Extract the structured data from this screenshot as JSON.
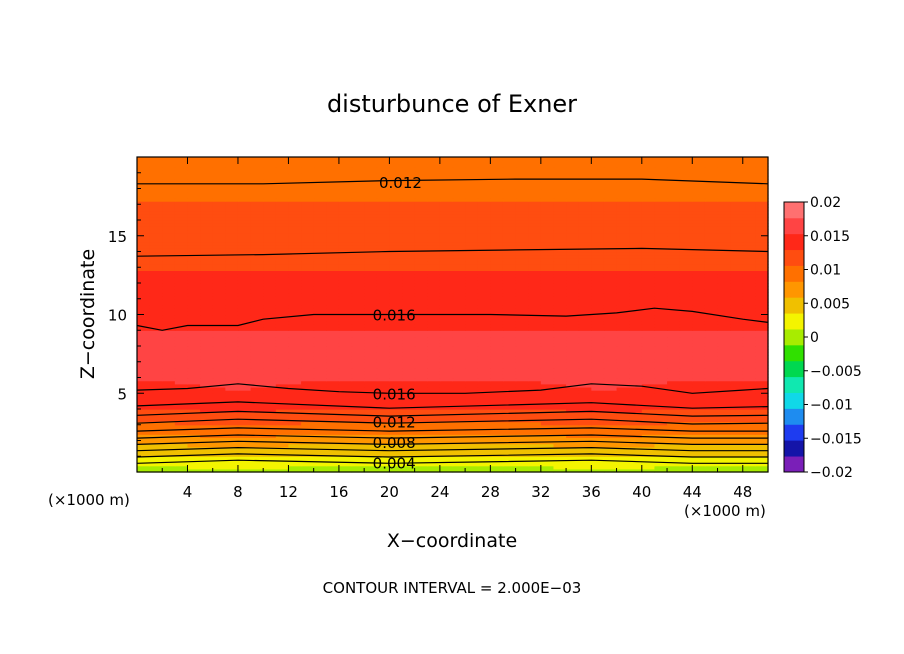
{
  "chart_data": {
    "type": "heatmap",
    "title": "disturbunce of Exner",
    "xlabel": "X−coordinate",
    "ylabel": "Z−coordinate",
    "x_units_left": "(×1000 m)",
    "x_units_right": "(×1000 m)",
    "xlim": [
      0,
      50
    ],
    "ylim": [
      0,
      20
    ],
    "x_ticks": [
      4,
      8,
      12,
      16,
      20,
      24,
      28,
      32,
      36,
      40,
      44,
      48
    ],
    "y_ticks": [
      5,
      10,
      15
    ],
    "footer": "CONTOUR INTERVAL = 2.000E−03",
    "colorbar": {
      "levels": [
        -0.02,
        -0.0175,
        -0.015,
        -0.0125,
        -0.01,
        -0.0075,
        -0.005,
        -0.0025,
        0,
        0.0025,
        0.005,
        0.0075,
        0.01,
        0.0125,
        0.015,
        0.0175,
        0.02
      ],
      "labels": [
        "−0.02",
        "−0.015",
        "−0.01",
        "−0.005",
        "0",
        "0.005",
        "0.01",
        "0.015",
        "0.02"
      ],
      "colors": [
        "#7a1fb8",
        "#1414a8",
        "#1e3cf0",
        "#1e8cf0",
        "#10d8e8",
        "#10e8b0",
        "#00d850",
        "#30e000",
        "#a8ec00",
        "#f4f400",
        "#f0c000",
        "#ff9600",
        "#ff7000",
        "#ff4d10",
        "#ff2818",
        "#ff4444",
        "#ff7070"
      ]
    },
    "profile": {
      "z": [
        0,
        0.5,
        1,
        1.5,
        2,
        2.5,
        3,
        3.5,
        4,
        4.5,
        5,
        6,
        7,
        8,
        9,
        10,
        11,
        12,
        13,
        14,
        15,
        16,
        17,
        18,
        19,
        20
      ],
      "value": [
        0.0008,
        0.0035,
        0.005,
        0.0065,
        0.0085,
        0.0105,
        0.012,
        0.0135,
        0.0148,
        0.0158,
        0.0168,
        0.0176,
        0.0182,
        0.0186,
        0.0174,
        0.0162,
        0.0159,
        0.0155,
        0.0148,
        0.0142,
        0.0139,
        0.0133,
        0.0126,
        0.0119,
        0.0113,
        0.0109
      ]
    },
    "contour_labels": [
      {
        "text": "0.012",
        "x": 18.5,
        "z": 18.4
      },
      {
        "text": "0.016",
        "x": 18.0,
        "z": 10.0
      },
      {
        "text": "0.016",
        "x": 18.0,
        "z": 5.0
      },
      {
        "text": "0.012",
        "x": 18.0,
        "z": 3.2
      },
      {
        "text": "0.008",
        "x": 18.0,
        "z": 1.9
      },
      {
        "text": "0.004",
        "x": 18.0,
        "z": 0.6
      }
    ],
    "contours": [
      {
        "points": [
          [
            0,
            0.55
          ],
          [
            8,
            0.75
          ],
          [
            20,
            0.55
          ],
          [
            36,
            0.75
          ],
          [
            44,
            0.55
          ],
          [
            50,
            0.55
          ]
        ]
      },
      {
        "points": [
          [
            0,
            0.95
          ],
          [
            8,
            1.15
          ],
          [
            20,
            0.95
          ],
          [
            36,
            1.15
          ],
          [
            44,
            0.95
          ],
          [
            50,
            0.95
          ]
        ]
      },
      {
        "points": [
          [
            0,
            1.35
          ],
          [
            8,
            1.55
          ],
          [
            20,
            1.35
          ],
          [
            36,
            1.55
          ],
          [
            44,
            1.35
          ],
          [
            50,
            1.35
          ]
        ]
      },
      {
        "points": [
          [
            0,
            1.75
          ],
          [
            8,
            1.95
          ],
          [
            20,
            1.75
          ],
          [
            36,
            1.95
          ],
          [
            44,
            1.75
          ],
          [
            50,
            1.75
          ]
        ]
      },
      {
        "points": [
          [
            0,
            2.15
          ],
          [
            8,
            2.35
          ],
          [
            20,
            2.15
          ],
          [
            36,
            2.35
          ],
          [
            44,
            2.15
          ],
          [
            50,
            2.15
          ]
        ]
      },
      {
        "points": [
          [
            0,
            2.6
          ],
          [
            8,
            2.8
          ],
          [
            20,
            2.6
          ],
          [
            36,
            2.8
          ],
          [
            44,
            2.6
          ],
          [
            50,
            2.6
          ]
        ]
      },
      {
        "points": [
          [
            0,
            3.1
          ],
          [
            8,
            3.35
          ],
          [
            20,
            3.1
          ],
          [
            36,
            3.35
          ],
          [
            44,
            3.05
          ],
          [
            50,
            3.1
          ]
        ]
      },
      {
        "points": [
          [
            0,
            3.6
          ],
          [
            8,
            3.85
          ],
          [
            20,
            3.55
          ],
          [
            36,
            3.85
          ],
          [
            44,
            3.55
          ],
          [
            50,
            3.6
          ]
        ]
      },
      {
        "points": [
          [
            0,
            4.2
          ],
          [
            8,
            4.45
          ],
          [
            20,
            4.05
          ],
          [
            36,
            4.4
          ],
          [
            44,
            4.05
          ],
          [
            50,
            4.15
          ]
        ]
      },
      {
        "points": [
          [
            0,
            5.2
          ],
          [
            4,
            5.3
          ],
          [
            8,
            5.6
          ],
          [
            12,
            5.3
          ],
          [
            16,
            5.1
          ],
          [
            20,
            5.0
          ],
          [
            26,
            5.0
          ],
          [
            32,
            5.2
          ],
          [
            36,
            5.6
          ],
          [
            40,
            5.45
          ],
          [
            44,
            5.0
          ],
          [
            48,
            5.2
          ],
          [
            50,
            5.3
          ]
        ]
      },
      {
        "points": [
          [
            0,
            9.3
          ],
          [
            2,
            9.0
          ],
          [
            4,
            9.3
          ],
          [
            8,
            9.3
          ],
          [
            10,
            9.7
          ],
          [
            14,
            10.0
          ],
          [
            20,
            10.0
          ],
          [
            28,
            10.0
          ],
          [
            34,
            9.9
          ],
          [
            38,
            10.1
          ],
          [
            41,
            10.4
          ],
          [
            44,
            10.2
          ],
          [
            48,
            9.7
          ],
          [
            50,
            9.5
          ]
        ]
      },
      {
        "points": [
          [
            0,
            13.7
          ],
          [
            10,
            13.8
          ],
          [
            20,
            14.0
          ],
          [
            30,
            14.1
          ],
          [
            40,
            14.2
          ],
          [
            50,
            14.0
          ]
        ]
      },
      {
        "points": [
          [
            0,
            18.3
          ],
          [
            10,
            18.3
          ],
          [
            20,
            18.5
          ],
          [
            30,
            18.6
          ],
          [
            40,
            18.6
          ],
          [
            50,
            18.3
          ]
        ]
      }
    ]
  }
}
